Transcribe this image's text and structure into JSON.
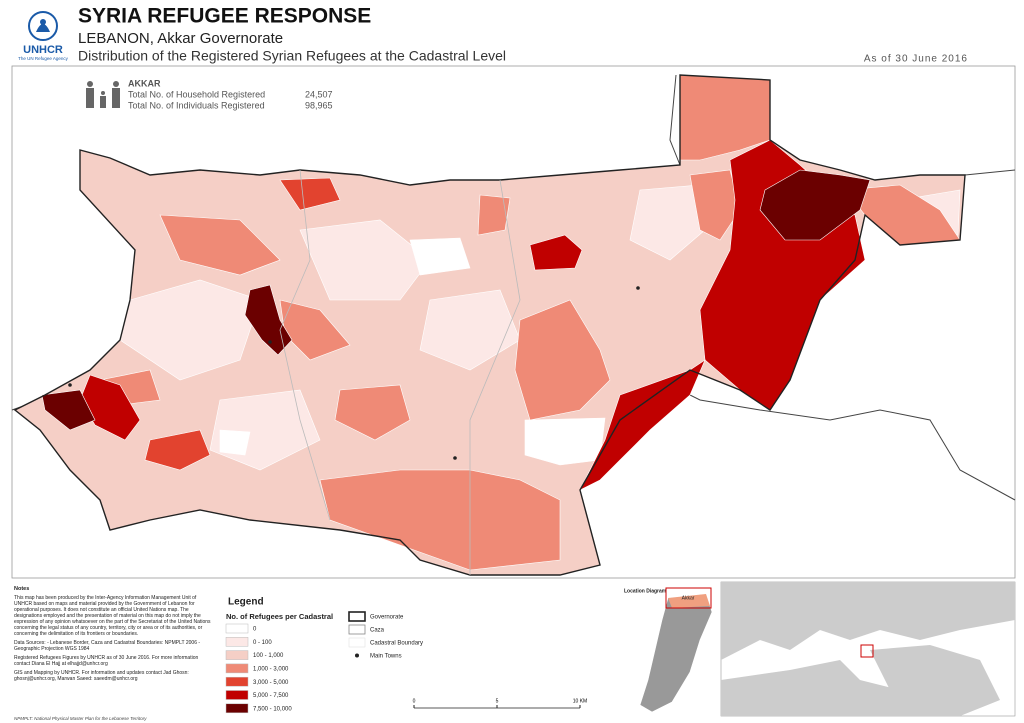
{
  "header": {
    "title": "SYRIA REFUGEE RESPONSE",
    "subtitle": "LEBANON, Akkar Governorate",
    "description": "Distribution of the Registered Syrian Refugees at the Cadastral Level",
    "date": "As of 30 June 2016",
    "logo_text": "UNHCR",
    "logo_tagline": "The UN Refugee Agency"
  },
  "summary": {
    "heading": "AKKAR",
    "rows": [
      {
        "label": "Total No. of Household Registered",
        "value": "24,507"
      },
      {
        "label": "Total No. of Individuals Registered",
        "value": "98,965"
      }
    ]
  },
  "legend": {
    "title": "Legend",
    "subtitle": "No. of Refugees per Cadastral",
    "classes": [
      {
        "label": "0",
        "color": "#ffffff"
      },
      {
        "label": "0 - 100",
        "color": "#fce8e6"
      },
      {
        "label": "100 - 1,000",
        "color": "#f5cfc6"
      },
      {
        "label": "1,000 - 3,000",
        "color": "#ef8a76"
      },
      {
        "label": "3,000 - 5,000",
        "color": "#e2432f"
      },
      {
        "label": "5,000 - 7,500",
        "color": "#c00000"
      },
      {
        "label": "7,500 - 10,000",
        "color": "#6b0000"
      }
    ],
    "boundaries": [
      "Governorate",
      "Caza",
      "Cadastral Boundary",
      "Main Towns"
    ]
  },
  "notes": {
    "heading": "Notes",
    "paragraphs": [
      "This map has been produced by the Inter-Agency Information Management Unit of UNHCR based on maps and material provided by the Government of Lebanon for operational purposes. It does not constitute an official United Nations map. The designations employed and the presentation of material on this map do not imply the expression of any opinion whatsoever on the part of the Secretariat of the United Nations concerning the legal status of any country, territory, city or area or of its authorities, or concerning the delimitation of its frontiers or boundaries.",
      "Data Sources: - Lebanese Border, Caza and Cadastral Boundaries: NPMPLT 2006 - Geographic Projection WGS 1984",
      "Registered Refugees Figures by UNHCR as of 30 June 2016. For more information contact Diana El Hajj at elhajjd@unhcr.org",
      "GIS and Mapping by UNHCR. For information and updates contact Jad Ghosn: ghosnj@unhcr.org, Marwan Saeed: saeedm@unhcr.org"
    ]
  },
  "location": {
    "title": "Location Diagram",
    "highlight": "Akkar"
  },
  "scale": {
    "labels": [
      "0",
      "5",
      "10 KM"
    ]
  },
  "footer": "NPMPLT: National Physical Master Plan for the Lebanese Territory"
}
